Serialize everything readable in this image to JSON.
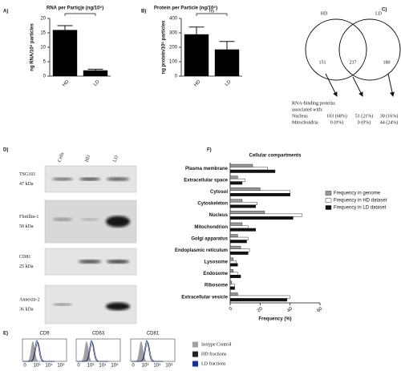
{
  "figure": {
    "panel_labels": [
      "A)",
      "B)",
      "C)",
      "D)",
      "E)",
      "F)"
    ]
  },
  "chart_data": [
    {
      "type": "bar",
      "title": "RNA per Particle (ng/10⁶)",
      "y_label": "ng RNA/10⁶ particles",
      "categories": [
        "HD",
        "LD"
      ],
      "values": [
        16,
        2
      ],
      "errors": [
        1.5,
        0.4
      ],
      "color": "#000000",
      "ylim": [
        0,
        20
      ],
      "yticks": [
        0,
        5,
        10,
        15,
        20
      ],
      "significance": "**"
    },
    {
      "type": "bar",
      "title": "Protein per Particle (ng/10⁶)",
      "y_label": "ng protein/10⁶ particles",
      "categories": [
        "HD",
        "LD"
      ],
      "values": [
        290,
        185
      ],
      "errors": [
        50,
        55
      ],
      "color": "#000000",
      "ylim": [
        0,
        400
      ],
      "yticks": [
        0,
        100,
        200,
        300,
        400
      ],
      "significance": "ns"
    },
    {
      "type": "hbar",
      "title": "Cellular compartments",
      "x_label": "Frequency (%)",
      "categories": [
        "Plasma membrane",
        "Extracellular space",
        "Cytosol",
        "Cytoskeleton",
        "Nucleus",
        "Mitochondrion",
        "Golgi apparatus",
        "Endoplasmic reticulum",
        "Lysosome",
        "Endosome",
        "Ribosome",
        "Extracellular vesicle"
      ],
      "series": [
        {
          "name": "Frequency in genome",
          "color": "#999999",
          "values": [
            15,
            5,
            20,
            8,
            23,
            8,
            5,
            7,
            2,
            2,
            1,
            5
          ]
        },
        {
          "name": "Frequency in HD dataset",
          "color": "#ffffff",
          "values": [
            25,
            10,
            40,
            18,
            48,
            12,
            12,
            13,
            4,
            5,
            3,
            40
          ]
        },
        {
          "name": "Frequency in LD dataset",
          "color": "#111111",
          "values": [
            30,
            8,
            40,
            17,
            42,
            17,
            11,
            12,
            5,
            7,
            3,
            38
          ]
        }
      ],
      "xlim": [
        0,
        60
      ],
      "xticks": [
        0,
        20,
        40,
        60
      ],
      "legend": "upper right"
    }
  ],
  "venn": {
    "sets": [
      "HD",
      "LD"
    ],
    "counts": [
      151,
      237,
      180
    ],
    "caption": [
      "RNA-binding proteins",
      "associated with:"
    ],
    "rows": [
      {
        "label": "Nucleus",
        "cells": [
          "103 (68%)",
          "51 (21%)",
          "30 (16%)"
        ]
      },
      {
        "label": "Mitochondria",
        "cells": [
          "0 (0%)",
          "0 (0%)",
          "44 (24%)"
        ]
      }
    ]
  },
  "western_blot": {
    "lanes": [
      "Cells",
      "HD",
      "LD"
    ],
    "rows": [
      {
        "protein": "TSG101",
        "size": "47 kDa"
      },
      {
        "protein": "Flotillin-1",
        "size": "50 kDa"
      },
      {
        "protein": "CD81",
        "size": "25 kDa"
      },
      {
        "protein": "Annexin-2",
        "size": "36 kDa"
      }
    ]
  },
  "flow_cytometry": {
    "panels": [
      "CD9",
      "CD63",
      "CD81"
    ],
    "tick_labels": [
      "0",
      "10³",
      "10⁴",
      "10⁵"
    ],
    "legend": [
      {
        "name": "Isotype Control",
        "color": "#a0a0a0"
      },
      {
        "name": "HD fractions",
        "color": "#222222"
      },
      {
        "name": "LD fractions",
        "color": "#1c2fa0"
      }
    ]
  }
}
